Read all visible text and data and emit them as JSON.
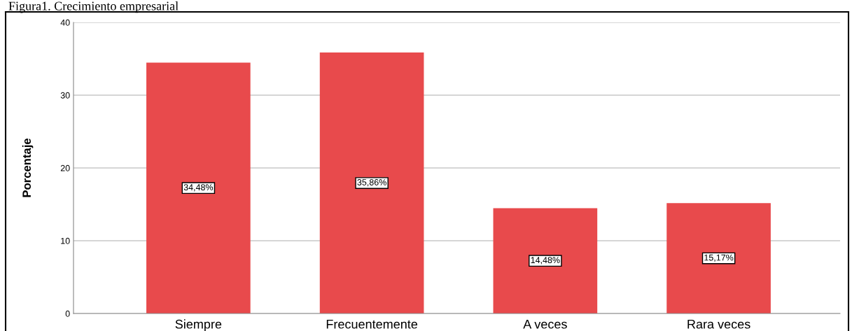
{
  "chart_data": {
    "type": "bar",
    "title": "Figura1. Crecimiento empresarial",
    "ylabel": "Porcentaje",
    "categories": [
      "Siempre",
      "Frecuentemente",
      "A veces",
      "Rara veces"
    ],
    "values": [
      34.48,
      35.86,
      14.48,
      15.17
    ],
    "value_labels": [
      "34,48%",
      "35,86%",
      "14,48%",
      "15,17%"
    ],
    "color": "#e84a4c",
    "ylim": [
      0,
      40
    ],
    "yticks": [
      0,
      10,
      20,
      30,
      40
    ],
    "grid": "y",
    "legend": false
  }
}
